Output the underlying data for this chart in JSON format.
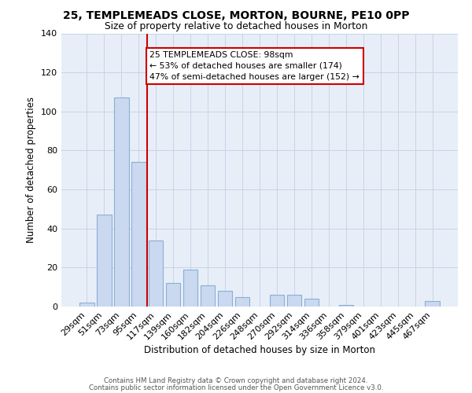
{
  "title1": "25, TEMPLEMEADS CLOSE, MORTON, BOURNE, PE10 0PP",
  "title2": "Size of property relative to detached houses in Morton",
  "xlabel": "Distribution of detached houses by size in Morton",
  "ylabel": "Number of detached properties",
  "bar_labels": [
    "29sqm",
    "51sqm",
    "73sqm",
    "95sqm",
    "117sqm",
    "139sqm",
    "160sqm",
    "182sqm",
    "204sqm",
    "226sqm",
    "248sqm",
    "270sqm",
    "292sqm",
    "314sqm",
    "336sqm",
    "358sqm",
    "379sqm",
    "401sqm",
    "423sqm",
    "445sqm",
    "467sqm"
  ],
  "bar_heights": [
    2,
    47,
    107,
    74,
    34,
    12,
    19,
    11,
    8,
    5,
    0,
    6,
    6,
    4,
    0,
    1,
    0,
    0,
    0,
    0,
    3
  ],
  "bar_color": "#cad9f0",
  "bar_edge_color": "#8bafd4",
  "vline_x": 3.5,
  "vline_color": "#cc0000",
  "ylim": [
    0,
    140
  ],
  "yticks": [
    0,
    20,
    40,
    60,
    80,
    100,
    120,
    140
  ],
  "annotation_text": "25 TEMPLEMEADS CLOSE: 98sqm\n← 53% of detached houses are smaller (174)\n47% of semi-detached houses are larger (152) →",
  "annotation_box_edgecolor": "#cc0000",
  "annotation_box_facecolor": "#ffffff",
  "footer1": "Contains HM Land Registry data © Crown copyright and database right 2024.",
  "footer2": "Contains public sector information licensed under the Open Government Licence v3.0.",
  "bg_color": "#e8eef8"
}
